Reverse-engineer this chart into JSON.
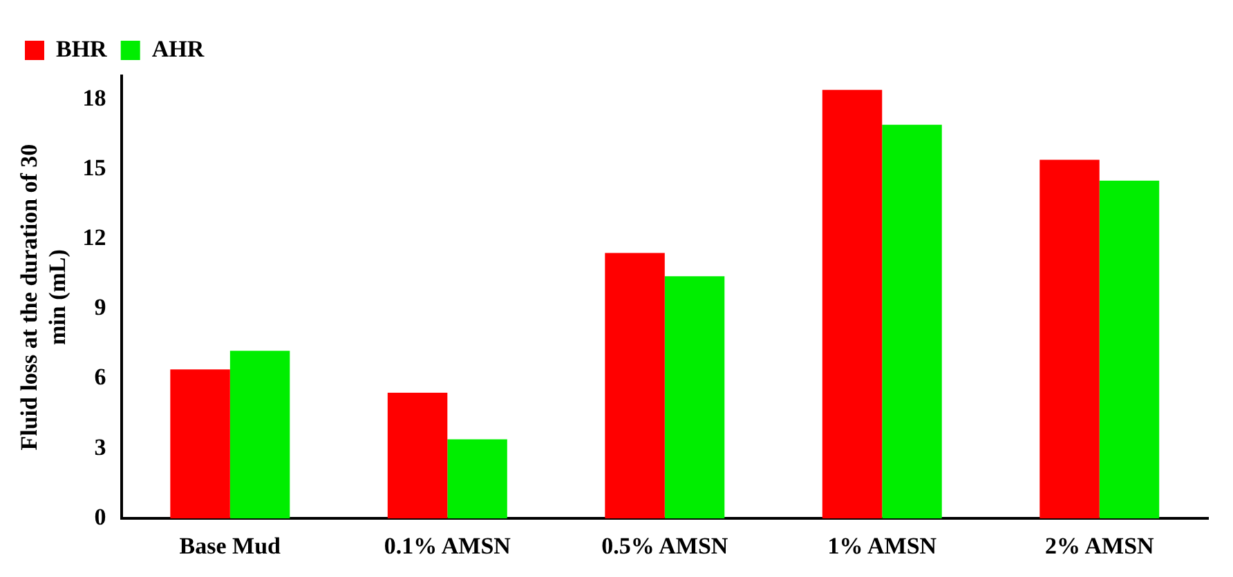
{
  "chart_data": {
    "type": "bar",
    "ylabel": "Fluid loss at the duration of 30 min (mL)",
    "categories": [
      "Base Mud",
      "0.1% AMSN",
      "0.5% AMSN",
      "1% AMSN",
      "2% AMSN"
    ],
    "series": [
      {
        "name": "BHR",
        "color": "#ff0000",
        "values": [
          6.4,
          5.4,
          11.4,
          18.4,
          15.4
        ]
      },
      {
        "name": "AHR",
        "color": "#00ee00",
        "values": [
          7.2,
          3.4,
          10.4,
          16.9,
          14.5
        ]
      }
    ],
    "ylim": [
      0,
      19
    ],
    "yticks": [
      0,
      3,
      6,
      9,
      12,
      15,
      18
    ],
    "grid": false,
    "legend": "top left"
  }
}
